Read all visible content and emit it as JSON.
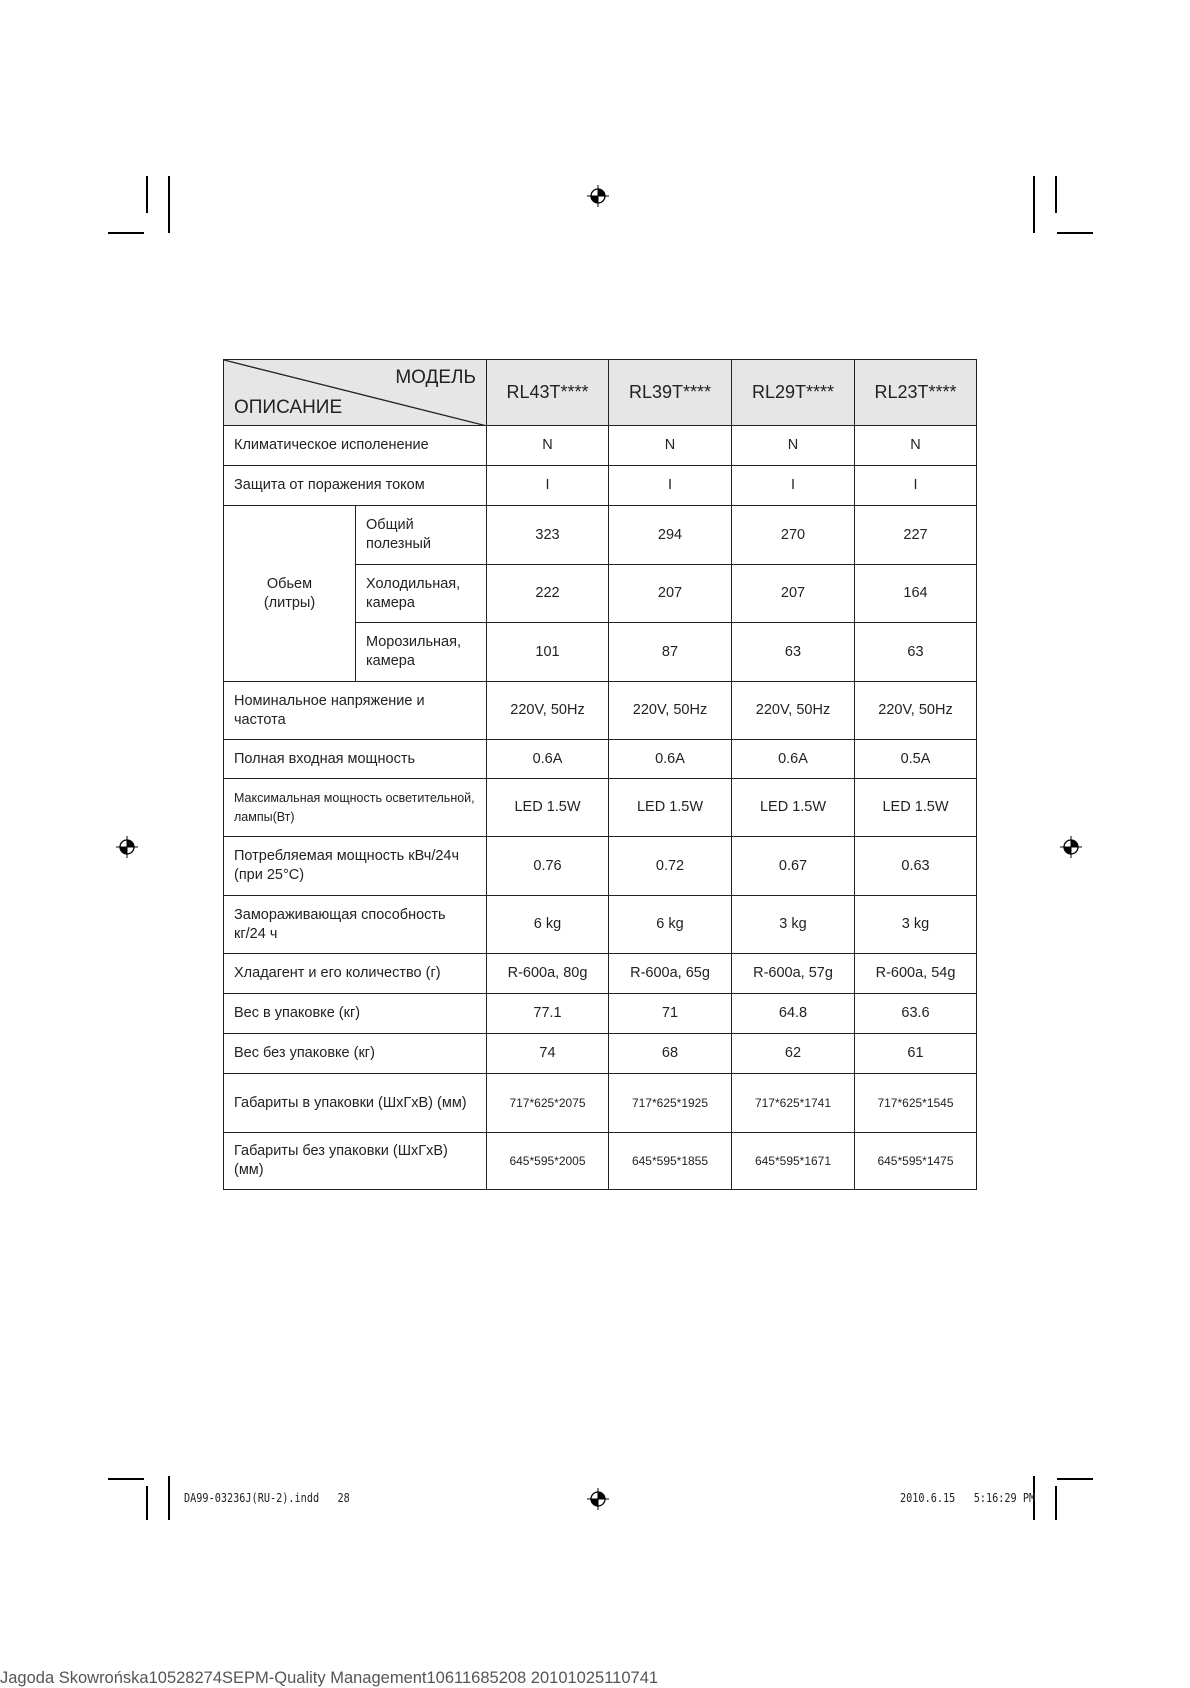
{
  "table": {
    "header_model": "МОДЕЛЬ",
    "header_description": "ОПИСАНИЕ",
    "models": [
      "RL43T****",
      "RL39T****",
      "RL29T****",
      "RL23T****"
    ],
    "rows": [
      {
        "label": "Климатическое исполенение",
        "values": [
          "N",
          "N",
          "N",
          "N"
        ]
      },
      {
        "label": "Защита от поражения током",
        "values": [
          "I",
          "I",
          "I",
          "I"
        ]
      },
      {
        "group": "Обьем (литры)",
        "label": "Общий полезный",
        "values": [
          "323",
          "294",
          "270",
          "227"
        ]
      },
      {
        "group": "Обьем (литры)",
        "label": "Холодильная, камера",
        "values": [
          "222",
          "207",
          "207",
          "164"
        ]
      },
      {
        "group": "Обьем (литры)",
        "label": "Морозильная, камера",
        "values": [
          "101",
          "87",
          "63",
          "63"
        ]
      },
      {
        "label": "Номинальное напряжение и частота",
        "values": [
          "220V, 50Hz",
          "220V, 50Hz",
          "220V, 50Hz",
          "220V, 50Hz"
        ]
      },
      {
        "label": "Полная входная мощность",
        "values": [
          "0.6A",
          "0.6A",
          "0.6A",
          "0.5A"
        ]
      },
      {
        "label": "Максимальная мощность осветительной, лампы(Вт)",
        "values": [
          "LED 1.5W",
          "LED 1.5W",
          "LED 1.5W",
          "LED 1.5W"
        ]
      },
      {
        "label": "Потребляемая мощность кВч/24ч (при 25°C)",
        "values": [
          "0.76",
          "0.72",
          "0.67",
          "0.63"
        ]
      },
      {
        "label": "Замораживающая способность кг/24 ч",
        "values": [
          "6 kg",
          "6 kg",
          "3 kg",
          "3 kg"
        ]
      },
      {
        "label": "Хладагент и его количество (г)",
        "values": [
          "R-600a, 80g",
          "R-600a, 65g",
          "R-600a, 57g",
          "R-600a, 54g"
        ]
      },
      {
        "label": "Вес в упаковке (кг)",
        "values": [
          "77.1",
          "71",
          "64.8",
          "63.6"
        ]
      },
      {
        "label": "Вес без упаковке (кг)",
        "values": [
          "74",
          "68",
          "62",
          "61"
        ]
      },
      {
        "label": "Габариты в упаковки (ШхГхВ) (мм)",
        "values": [
          "717*625*2075",
          "717*625*1925",
          "717*625*1741",
          "717*625*1545"
        ]
      },
      {
        "label": "Габариты без упаковки (ШхГхВ) (мм)",
        "values": [
          "645*595*2005",
          "645*595*1855",
          "645*595*1671",
          "645*595*1475"
        ]
      }
    ]
  },
  "footer": {
    "file": "DA99-03236J(RU-2).indd   28",
    "timestamp": "2010.6.15   5:16:29 PM"
  },
  "watermark": "Jagoda Skowrońska10528274SEPM-Quality Management10611685208  20101025110741"
}
